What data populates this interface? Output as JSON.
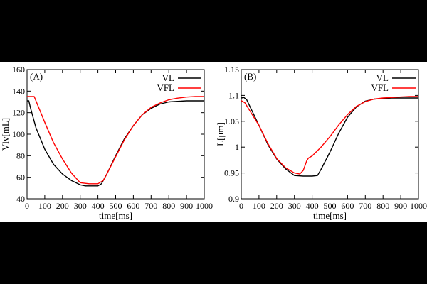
{
  "chart_data": [
    {
      "type": "line",
      "panel_label": "(A)",
      "title": "",
      "xlabel": "time[ms]",
      "ylabel": "Vlv[mL]",
      "xlim": [
        0,
        1000
      ],
      "ylim": [
        40,
        160
      ],
      "xticks": [
        0,
        100,
        200,
        300,
        400,
        500,
        600,
        700,
        800,
        900,
        1000
      ],
      "yticks": [
        40,
        60,
        80,
        100,
        120,
        140,
        160
      ],
      "legend_position": "top-right",
      "series": [
        {
          "name": "VL",
          "color": "#000000",
          "x": [
            0,
            10,
            20,
            50,
            100,
            150,
            200,
            250,
            300,
            330,
            360,
            400,
            420,
            450,
            500,
            550,
            600,
            650,
            700,
            750,
            800,
            850,
            900,
            950,
            1000
          ],
          "y": [
            131,
            131,
            124,
            106,
            86,
            72,
            63,
            57,
            53,
            52,
            52,
            52,
            54,
            63,
            80,
            96,
            108,
            118,
            124,
            128,
            130,
            130.5,
            131,
            131,
            131
          ]
        },
        {
          "name": "VFL",
          "color": "#ff0000",
          "x": [
            0,
            20,
            40,
            100,
            150,
            200,
            250,
            300,
            350,
            400,
            430,
            450,
            500,
            550,
            600,
            650,
            700,
            750,
            800,
            850,
            900,
            950,
            1000
          ],
          "y": [
            135,
            135,
            135,
            111,
            92,
            77,
            64,
            55,
            54,
            54,
            57,
            63,
            79,
            95,
            108,
            118,
            125,
            129,
            132,
            133.5,
            134.5,
            135,
            135
          ]
        }
      ]
    },
    {
      "type": "line",
      "panel_label": "(B)",
      "title": "",
      "xlabel": "time[ms]",
      "ylabel": "L[μm]",
      "xlim": [
        0,
        1000
      ],
      "ylim": [
        0.9,
        1.15
      ],
      "xticks": [
        0,
        100,
        200,
        300,
        400,
        500,
        600,
        700,
        800,
        900,
        1000
      ],
      "yticks": [
        0.9,
        0.95,
        1,
        1.05,
        1.1,
        1.15
      ],
      "legend_position": "top-right",
      "series": [
        {
          "name": "VL",
          "color": "#000000",
          "x": [
            0,
            15,
            30,
            100,
            150,
            200,
            250,
            300,
            350,
            400,
            430,
            450,
            500,
            550,
            600,
            650,
            700,
            750,
            800,
            850,
            900,
            950,
            1000
          ],
          "y": [
            1.095,
            1.096,
            1.092,
            1.042,
            1.005,
            0.977,
            0.958,
            0.945,
            0.944,
            0.944,
            0.945,
            0.957,
            0.99,
            1.027,
            1.058,
            1.078,
            1.089,
            1.093,
            1.094,
            1.095,
            1.095,
            1.095,
            1.095
          ]
        },
        {
          "name": "VFL",
          "color": "#ff0000",
          "x": [
            0,
            20,
            100,
            150,
            200,
            250,
            300,
            330,
            350,
            370,
            380,
            400,
            450,
            500,
            550,
            600,
            650,
            700,
            750,
            800,
            850,
            900,
            950,
            1000
          ],
          "y": [
            1.09,
            1.086,
            1.042,
            1.007,
            0.978,
            0.96,
            0.95,
            0.948,
            0.955,
            0.974,
            0.979,
            0.983,
            1.0,
            1.02,
            1.043,
            1.063,
            1.079,
            1.088,
            1.093,
            1.095,
            1.096,
            1.097,
            1.098,
            1.098
          ]
        }
      ]
    }
  ]
}
